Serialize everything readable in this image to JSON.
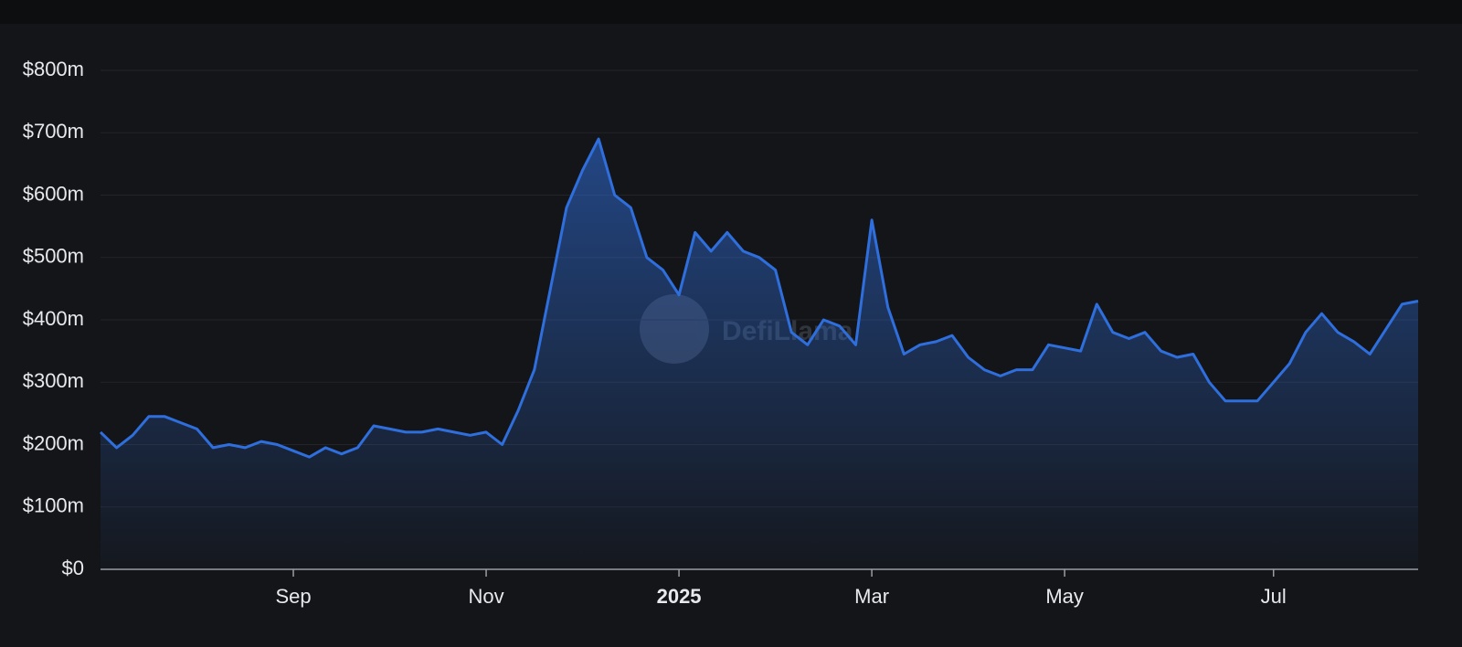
{
  "chart_data": {
    "type": "area",
    "watermark": "DefiLlama",
    "categories": [
      null,
      null,
      null,
      null,
      null,
      null,
      null,
      null,
      null,
      null,
      null,
      null,
      "Sep",
      null,
      null,
      null,
      null,
      null,
      null,
      null,
      null,
      null,
      null,
      null,
      "Nov",
      null,
      null,
      null,
      null,
      null,
      null,
      null,
      null,
      null,
      null,
      null,
      "2025",
      null,
      null,
      null,
      null,
      null,
      null,
      null,
      null,
      null,
      null,
      null,
      "Mar",
      null,
      null,
      null,
      null,
      null,
      null,
      null,
      null,
      null,
      null,
      null,
      "May",
      null,
      null,
      null,
      null,
      null,
      null,
      null,
      null,
      null,
      null,
      null,
      null,
      "Jul",
      null,
      null,
      null,
      null,
      null,
      null,
      null,
      null,
      null
    ],
    "values": [
      220,
      195,
      215,
      245,
      245,
      235,
      225,
      195,
      200,
      195,
      205,
      200,
      190,
      180,
      195,
      185,
      195,
      230,
      225,
      220,
      220,
      225,
      220,
      215,
      220,
      200,
      255,
      320,
      450,
      580,
      640,
      690,
      600,
      580,
      500,
      480,
      440,
      540,
      510,
      540,
      510,
      500,
      480,
      380,
      360,
      400,
      390,
      360,
      560,
      420,
      345,
      360,
      365,
      375,
      340,
      320,
      310,
      320,
      320,
      360,
      355,
      350,
      425,
      380,
      370,
      380,
      350,
      340,
      345,
      300,
      270,
      270,
      270,
      300,
      330,
      380,
      410,
      380,
      365,
      345,
      385,
      425,
      430
    ],
    "color": "#2f6fdd",
    "ylim": [
      0,
      800
    ],
    "yticks": [
      {
        "value": 0,
        "label": "$0"
      },
      {
        "value": 100,
        "label": "$100m"
      },
      {
        "value": 200,
        "label": "$200m"
      },
      {
        "value": 300,
        "label": "$300m"
      },
      {
        "value": 400,
        "label": "$400m"
      },
      {
        "value": 500,
        "label": "$500m"
      },
      {
        "value": 600,
        "label": "$600m"
      },
      {
        "value": 700,
        "label": "$700m"
      },
      {
        "value": 800,
        "label": "$800m"
      }
    ],
    "grid": true
  }
}
